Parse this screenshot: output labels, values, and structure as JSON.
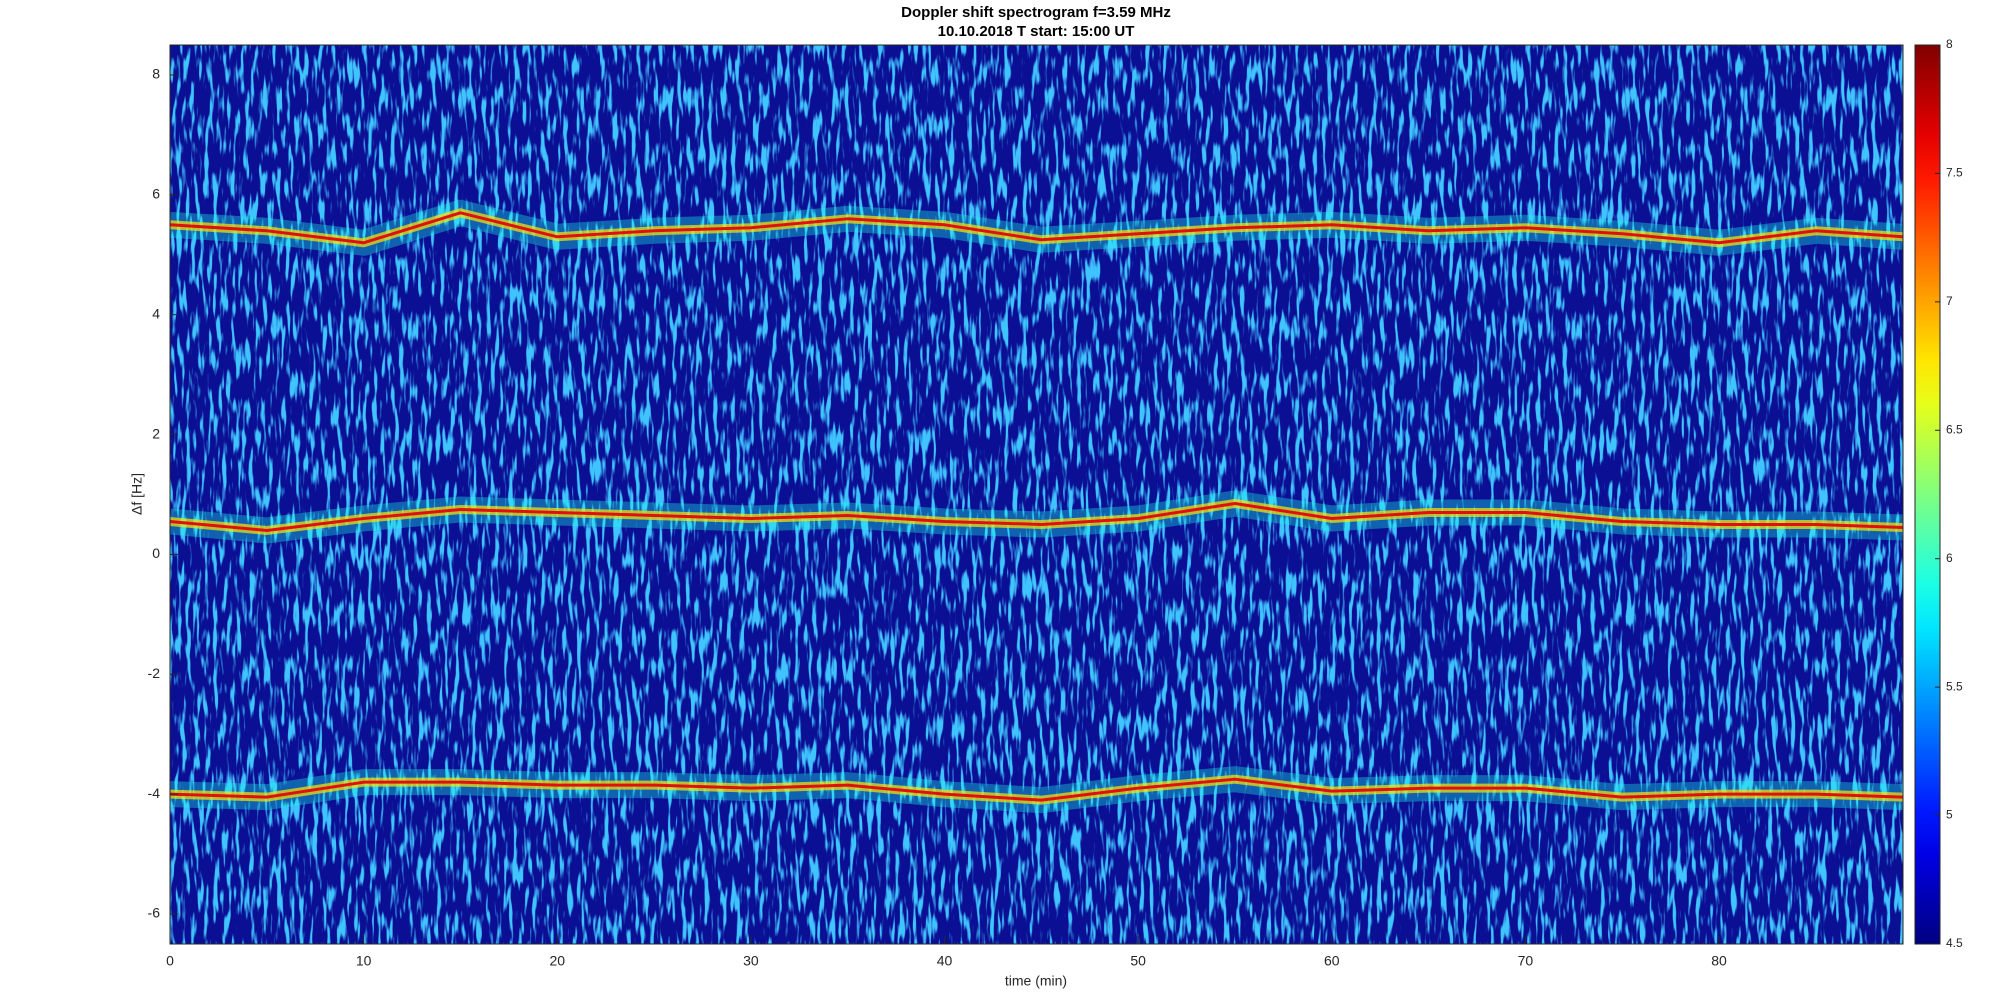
{
  "chart_data": {
    "type": "spectrogram",
    "title": "Doppler shift spectrogram f=3.59 MHz",
    "subtitle": "10.10.2018   T start: 15:00 UT",
    "x_label": "time (min)",
    "y_label": "Δf [Hz]",
    "xlim": [
      0,
      89.5
    ],
    "xticks": [
      0,
      10,
      20,
      30,
      40,
      50,
      60,
      70,
      80
    ],
    "ylim": [
      -6.5,
      8.5
    ],
    "yticks": [
      -6,
      -4,
      -2,
      0,
      2,
      4,
      6,
      8
    ],
    "colormap": "jet",
    "clim": [
      4.5,
      8
    ],
    "cticks": [
      4.5,
      5,
      5.5,
      6,
      6.5,
      7,
      7.5,
      8
    ],
    "x": [
      0,
      5,
      10,
      15,
      20,
      25,
      30,
      35,
      40,
      45,
      50,
      55,
      60,
      65,
      70,
      75,
      80,
      85,
      89.5
    ],
    "series": [
      {
        "color": "#e01010",
        "values": [
          5.5,
          5.4,
          5.2,
          5.7,
          5.3,
          5.4,
          5.45,
          5.6,
          5.5,
          5.25,
          5.35,
          5.45,
          5.5,
          5.4,
          5.45,
          5.35,
          5.2,
          5.4,
          5.3
        ]
      },
      {
        "color": "#e01010",
        "values": [
          0.55,
          0.4,
          0.6,
          0.75,
          0.7,
          0.65,
          0.6,
          0.65,
          0.55,
          0.5,
          0.6,
          0.85,
          0.6,
          0.7,
          0.7,
          0.55,
          0.5,
          0.5,
          0.45
        ]
      },
      {
        "color": "#e01010",
        "values": [
          -4.0,
          -4.05,
          -3.8,
          -3.8,
          -3.85,
          -3.85,
          -3.9,
          -3.85,
          -4.0,
          -4.1,
          -3.9,
          -3.75,
          -3.95,
          -3.9,
          -3.9,
          -4.05,
          -4.0,
          -4.0,
          -4.05
        ]
      }
    ]
  }
}
